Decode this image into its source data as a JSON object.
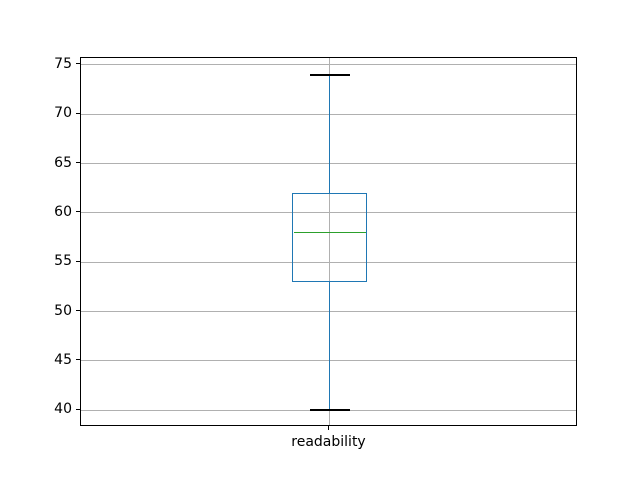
{
  "figure": {
    "background": "#ffffff"
  },
  "chart_data": {
    "type": "boxplot",
    "title": "",
    "xlabel": "",
    "ylabel": "",
    "categories": [
      "readability"
    ],
    "series": [
      {
        "label": "readability",
        "whisker_low": 40,
        "q1": 53,
        "median": 58,
        "q3": 62,
        "whisker_high": 74,
        "fliers": []
      }
    ],
    "y_ticks": [
      40,
      45,
      50,
      55,
      60,
      65,
      70,
      75
    ],
    "ylim": [
      38.3,
      75.7
    ],
    "grid": true,
    "legend": "none",
    "colors": {
      "box": "#1f77b4",
      "whisker": "#1f77b4",
      "cap": "#000000",
      "median": "#2ca02c",
      "grid": "#b0b0b0",
      "spine": "#000000",
      "text": "#000000"
    }
  }
}
